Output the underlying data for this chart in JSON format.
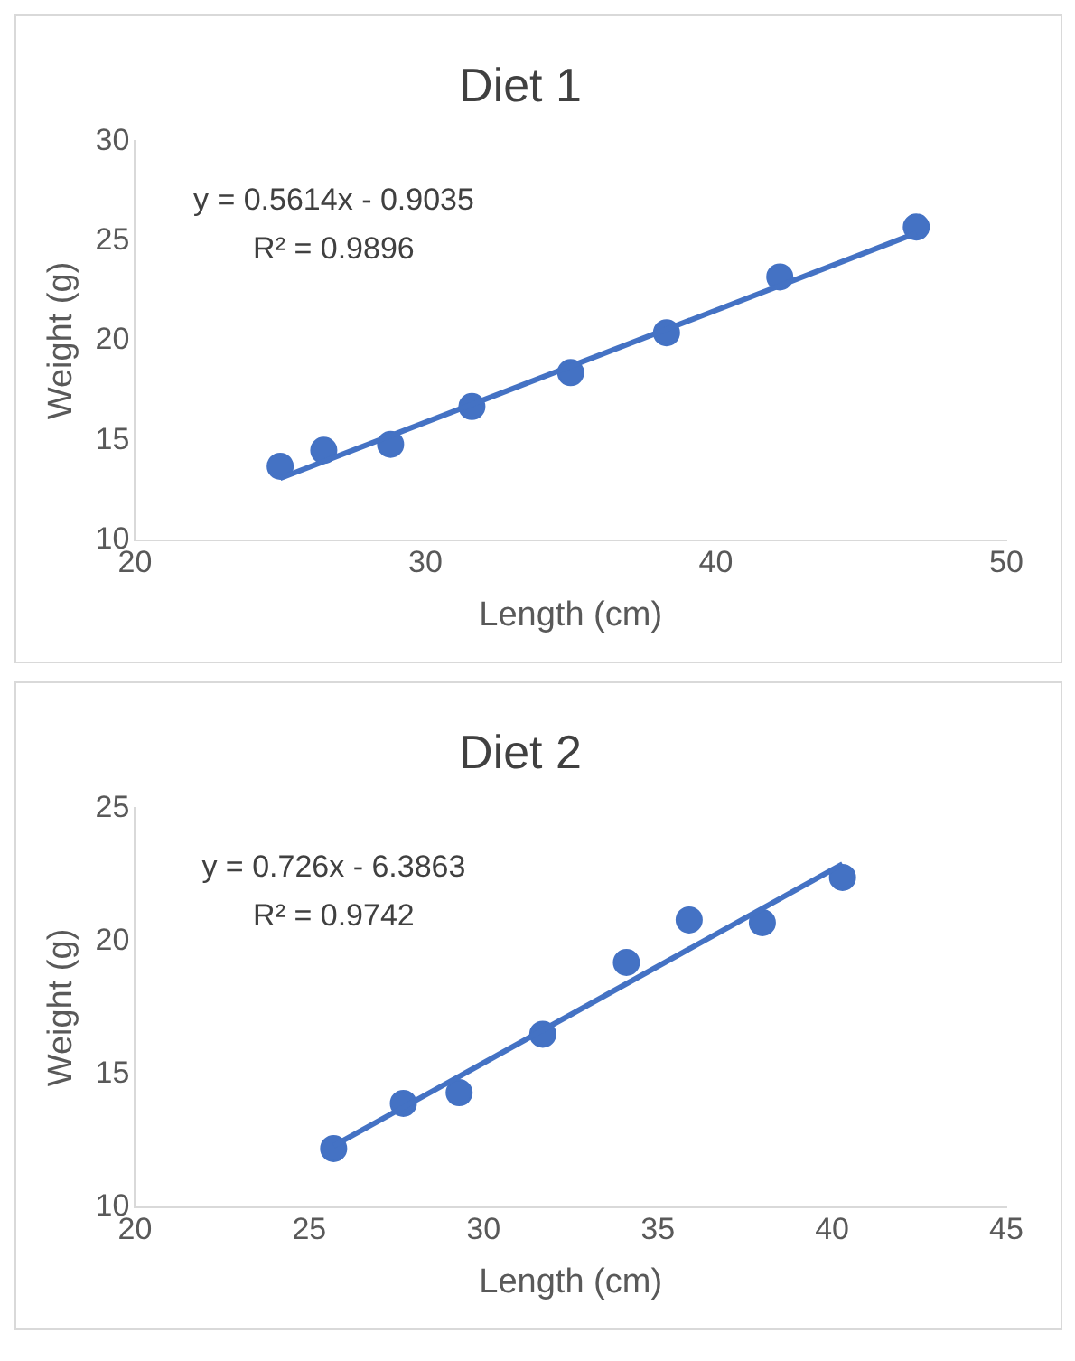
{
  "chart_data": [
    {
      "type": "scatter",
      "title": "Diet 1",
      "xlabel": "Length (cm)",
      "ylabel": "Weight (g)",
      "xlim": [
        20,
        50
      ],
      "xticks": [
        20,
        30,
        40,
        50
      ],
      "ylim": [
        10,
        30
      ],
      "yticks": [
        10,
        15,
        20,
        25,
        30
      ],
      "grid": false,
      "legend": false,
      "annotations": [
        "y = 0.5614x - 0.9035",
        "R² = 0.9896"
      ],
      "series": [
        {
          "color": "#4472c4",
          "marker": "circle",
          "x": [
            25.0,
            26.5,
            28.8,
            31.6,
            35.0,
            38.3,
            42.2,
            46.9
          ],
          "values": [
            13.7,
            14.5,
            14.8,
            16.7,
            18.4,
            20.4,
            23.2,
            25.7
          ]
        },
        {
          "type": "line",
          "color": "#4472c4",
          "marker": "none",
          "x": [
            25.0,
            46.9
          ],
          "values": [
            13.1,
            25.4
          ]
        }
      ]
    },
    {
      "type": "scatter",
      "title": "Diet 2",
      "xlabel": "Length (cm)",
      "ylabel": "Weight (g)",
      "xlim": [
        20,
        45
      ],
      "xticks": [
        20,
        25,
        30,
        35,
        40,
        45
      ],
      "ylim": [
        10,
        25
      ],
      "yticks": [
        10,
        15,
        20,
        25
      ],
      "grid": false,
      "legend": false,
      "annotations": [
        "y = 0.726x - 6.3863",
        "R² = 0.9742"
      ],
      "series": [
        {
          "color": "#4472c4",
          "marker": "circle",
          "x": [
            25.7,
            27.7,
            29.3,
            31.7,
            34.1,
            35.9,
            38.0,
            40.3
          ],
          "values": [
            12.2,
            13.9,
            14.3,
            16.5,
            19.2,
            20.8,
            20.7,
            22.4
          ]
        },
        {
          "type": "line",
          "color": "#4472c4",
          "marker": "none",
          "x": [
            25.7,
            40.3
          ],
          "values": [
            12.3,
            22.9
          ]
        }
      ]
    }
  ]
}
